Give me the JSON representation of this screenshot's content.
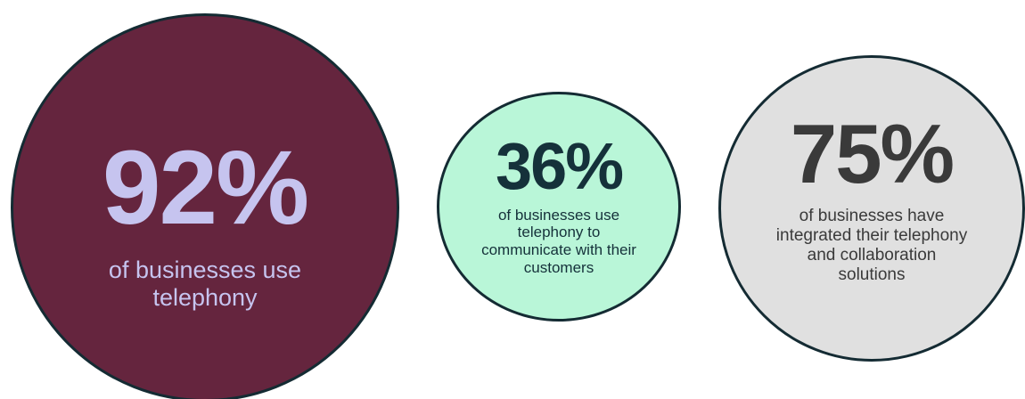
{
  "stats": [
    {
      "value": "92%",
      "caption": "of businesses use telephony",
      "circle_color": "#65253e",
      "text_color": "#c6c4ef"
    },
    {
      "value": "36%",
      "caption": "of businesses use telephony to communicate with their customers",
      "circle_color": "#b9f6d8",
      "text_color": "#15313a"
    },
    {
      "value": "75%",
      "caption": "of businesses have integrated their telephony and collaboration solutions",
      "circle_color": "#e0e0e0",
      "text_color": "#3a3a3a"
    }
  ],
  "border_color": "#142b33"
}
